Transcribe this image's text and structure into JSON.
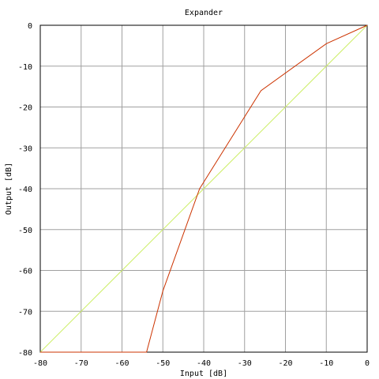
{
  "chart_data": {
    "type": "line",
    "title": "Expander",
    "xlabel": "Input [dB]",
    "ylabel": "Output [dB]",
    "xlim": [
      -80,
      0
    ],
    "ylim": [
      -80,
      0
    ],
    "grid": true,
    "x_ticks": [
      -80,
      -70,
      -60,
      -50,
      -40,
      -30,
      -20,
      -10,
      0
    ],
    "y_ticks": [
      0,
      -10,
      -20,
      -30,
      -40,
      -50,
      -60,
      -70,
      -80
    ],
    "x_tick_labels": [
      "-80",
      "-70",
      "-60",
      "-50",
      "-40",
      "-30",
      "-20",
      "-10",
      "0"
    ],
    "y_tick_labels": [
      "0",
      "-10",
      "-20",
      "-30",
      "-40",
      "-50",
      "-60",
      "-70",
      "-80"
    ],
    "series": [
      {
        "color": "#ccee66",
        "points": [
          [
            -80,
            -80
          ],
          [
            0,
            0
          ]
        ]
      },
      {
        "color": "#cc3300",
        "points": [
          [
            -80,
            -80
          ],
          [
            -54,
            -80
          ],
          [
            -50,
            -65
          ],
          [
            -41,
            -40
          ],
          [
            -26,
            -16
          ],
          [
            -10,
            -4.5
          ],
          [
            0,
            0
          ]
        ]
      }
    ]
  }
}
